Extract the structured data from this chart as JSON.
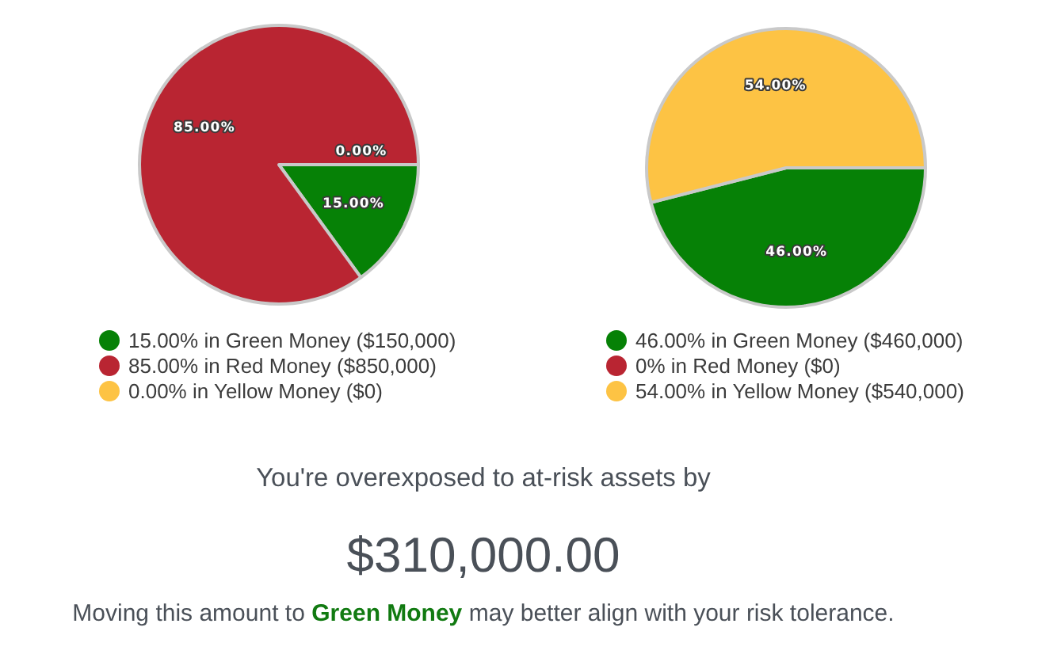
{
  "chart_data": [
    {
      "type": "pie",
      "categories": [
        "15.00% in Green Money ($150,000)",
        "85.00% in Red Money ($850,000)",
        "0.00% in Yellow Money ($0)"
      ],
      "values": [
        15,
        85,
        0
      ],
      "colors": [
        "#068106",
        "#b92532",
        "#fdc344"
      ],
      "value_labels": [
        "15.00%",
        "85.00%",
        "0.00%"
      ],
      "legend": "bottom"
    },
    {
      "type": "pie",
      "categories": [
        "46.00% in Green Money ($460,000)",
        "0% in Red Money ($0)",
        "54.00% in Yellow Money ($540,000)"
      ],
      "values": [
        46,
        0,
        54
      ],
      "colors": [
        "#068106",
        "#b92532",
        "#fdc344"
      ],
      "value_labels": [
        "46.00%",
        null,
        "54.00%"
      ],
      "legend": "bottom"
    },
    {
      "type": "other",
      "title": "You're overexposed to at-risk assets by",
      "subtitle": "$310,000.00",
      "annotations": [
        "Moving this amount to",
        "Green Money",
        "may better align with your risk tolerance."
      ]
    }
  ]
}
